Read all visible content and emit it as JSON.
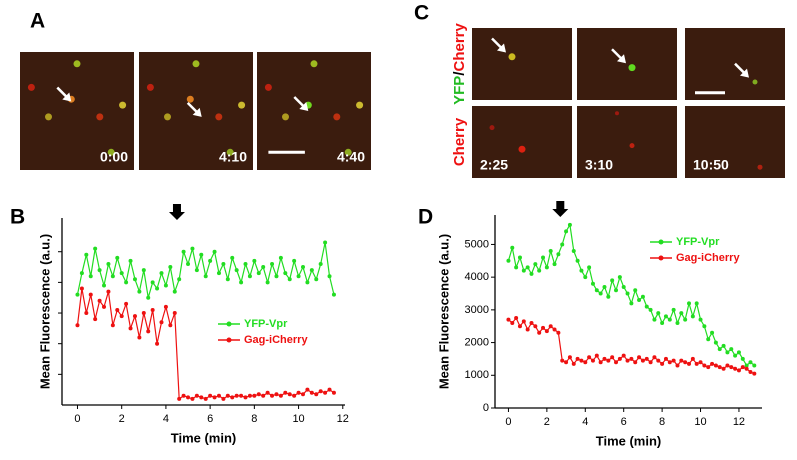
{
  "panels": {
    "A": {
      "letter": "A",
      "timestamps": [
        "0:00",
        "4:10",
        "4:40"
      ]
    },
    "C": {
      "letter": "C",
      "top_row_label": [
        "YFP",
        "/",
        "Cherry"
      ],
      "bottom_row_label": "Cherry",
      "timestamps": [
        "2:25",
        "3:10",
        "10:50"
      ]
    }
  },
  "chart_data": [
    {
      "type": "line",
      "panel": "B",
      "ylabel": "Mean Fluorescence (a.u.)",
      "xlabel": "Time (min)",
      "xlim": [
        -0.7,
        12.1
      ],
      "xticks": [
        0,
        2,
        4,
        6,
        8,
        10,
        12
      ],
      "ylim": [
        0,
        6.1
      ],
      "yticks": [
        1,
        2,
        3,
        4,
        5
      ],
      "ytick_labels": false,
      "x": [
        0,
        0.2,
        0.4,
        0.6,
        0.8,
        1,
        1.2,
        1.4,
        1.6,
        1.8,
        2,
        2.2,
        2.4,
        2.6,
        2.8,
        3,
        3.2,
        3.4,
        3.6,
        3.8,
        4,
        4.2,
        4.4,
        4.6,
        4.8,
        5,
        5.2,
        5.4,
        5.6,
        5.8,
        6,
        6.2,
        6.4,
        6.6,
        6.8,
        7,
        7.2,
        7.4,
        7.6,
        7.8,
        8,
        8.2,
        8.4,
        8.6,
        8.8,
        9,
        9.2,
        9.4,
        9.6,
        9.8,
        10,
        10.2,
        10.4,
        10.6,
        10.8,
        11,
        11.2,
        11.4,
        11.6
      ],
      "series": [
        {
          "name": "YFP-Vpr",
          "color": "#22dd22",
          "values": [
            3.6,
            4.3,
            4.9,
            4.2,
            5.1,
            4.4,
            3.9,
            4.6,
            4.2,
            4.8,
            4.3,
            4.0,
            4.7,
            4.1,
            3.7,
            4.4,
            3.5,
            4.0,
            3.8,
            4.3,
            3.9,
            4.5,
            3.7,
            4.1,
            5.0,
            4.6,
            5.1,
            4.4,
            4.9,
            4.2,
            4.7,
            5.0,
            4.3,
            4.6,
            4.1,
            4.8,
            4.4,
            4.0,
            4.6,
            4.2,
            4.7,
            4.3,
            4.5,
            4.0,
            4.6,
            4.2,
            4.8,
            4.3,
            4.1,
            4.7,
            4.2,
            4.5,
            4.0,
            4.4,
            4.1,
            4.6,
            5.3,
            4.2,
            3.6
          ]
        },
        {
          "name": "Gag-iCherry",
          "color": "#ee1111",
          "values": [
            2.6,
            3.8,
            3.0,
            3.6,
            2.8,
            3.4,
            3.2,
            3.7,
            2.6,
            3.1,
            2.9,
            3.3,
            2.5,
            2.9,
            2.2,
            3.0,
            2.4,
            3.1,
            2.0,
            2.7,
            3.2,
            2.6,
            3.0,
            0.2,
            0.3,
            0.25,
            0.2,
            0.3,
            0.25,
            0.2,
            0.3,
            0.25,
            0.3,
            0.2,
            0.3,
            0.25,
            0.3,
            0.3,
            0.25,
            0.3,
            0.3,
            0.35,
            0.3,
            0.4,
            0.3,
            0.35,
            0.3,
            0.4,
            0.35,
            0.3,
            0.4,
            0.35,
            0.5,
            0.4,
            0.35,
            0.45,
            0.4,
            0.5,
            0.4
          ]
        }
      ]
    },
    {
      "type": "line",
      "panel": "D",
      "ylabel": "Mean Fluorescence (a.u.)",
      "xlabel": "Time (min)",
      "xlim": [
        -0.7,
        13.2
      ],
      "xticks": [
        0,
        2,
        4,
        6,
        8,
        10,
        12
      ],
      "ylim": [
        0,
        5900
      ],
      "yticks": [
        0,
        1000,
        2000,
        3000,
        4000,
        5000
      ],
      "x": [
        0,
        0.2,
        0.4,
        0.6,
        0.8,
        1,
        1.2,
        1.4,
        1.6,
        1.8,
        2,
        2.2,
        2.4,
        2.6,
        2.8,
        3,
        3.2,
        3.4,
        3.6,
        3.8,
        4,
        4.2,
        4.4,
        4.6,
        4.8,
        5,
        5.2,
        5.4,
        5.6,
        5.8,
        6,
        6.2,
        6.4,
        6.6,
        6.8,
        7,
        7.2,
        7.4,
        7.6,
        7.8,
        8,
        8.2,
        8.4,
        8.6,
        8.8,
        9,
        9.2,
        9.4,
        9.6,
        9.8,
        10,
        10.2,
        10.4,
        10.6,
        10.8,
        11,
        11.2,
        11.4,
        11.6,
        11.8,
        12,
        12.2,
        12.4,
        12.6,
        12.8
      ],
      "series": [
        {
          "name": "YFP-Vpr",
          "color": "#22dd22",
          "values": [
            4500,
            4900,
            4300,
            4600,
            4200,
            4300,
            4100,
            4400,
            4200,
            4600,
            4300,
            4800,
            4400,
            4700,
            5000,
            5400,
            5600,
            4800,
            4500,
            4200,
            4000,
            4300,
            3800,
            3600,
            3500,
            3700,
            3400,
            3900,
            3600,
            4000,
            3700,
            3500,
            3200,
            3600,
            3300,
            3400,
            3100,
            3000,
            2700,
            2900,
            2600,
            2800,
            2700,
            3000,
            2600,
            2900,
            2700,
            3200,
            2800,
            3200,
            2700,
            2500,
            2100,
            2300,
            2000,
            1800,
            1900,
            1700,
            1800,
            1600,
            1700,
            1500,
            1300,
            1400,
            1300
          ]
        },
        {
          "name": "Gag-iCherry",
          "color": "#ee1111",
          "values": [
            2700,
            2600,
            2750,
            2500,
            2650,
            2400,
            2600,
            2500,
            2300,
            2450,
            2350,
            2500,
            2400,
            2300,
            1450,
            1400,
            1550,
            1350,
            1500,
            1450,
            1400,
            1550,
            1450,
            1600,
            1400,
            1500,
            1450,
            1550,
            1400,
            1500,
            1600,
            1450,
            1500,
            1400,
            1550,
            1450,
            1500,
            1400,
            1550,
            1450,
            1350,
            1500,
            1400,
            1450,
            1300,
            1450,
            1400,
            1350,
            1500,
            1350,
            1400,
            1300,
            1250,
            1350,
            1300,
            1250,
            1200,
            1300,
            1250,
            1200,
            1150,
            1250,
            1200,
            1100,
            1050
          ]
        }
      ]
    }
  ]
}
